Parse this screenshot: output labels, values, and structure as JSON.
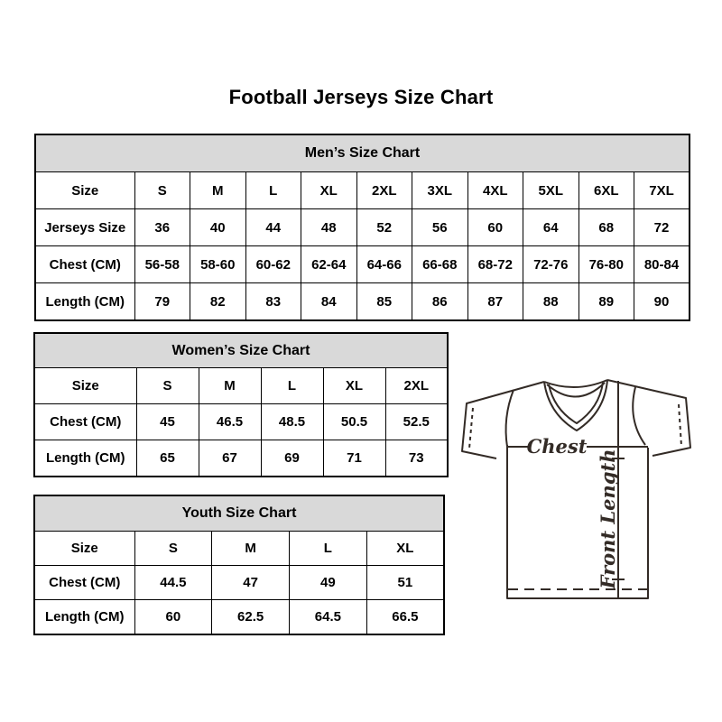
{
  "page": {
    "title": "Football Jerseys Size Chart"
  },
  "colors": {
    "background": "#ffffff",
    "table_header_bg": "#d9d9d9",
    "border": "#000000",
    "diagram_line": "#332b26",
    "text": "#000000"
  },
  "tables": {
    "men": {
      "title": "Men’s Size Chart",
      "rows": [
        [
          "Size",
          "S",
          "M",
          "L",
          "XL",
          "2XL",
          "3XL",
          "4XL",
          "5XL",
          "6XL",
          "7XL"
        ],
        [
          "Jerseys Size",
          "36",
          "40",
          "44",
          "48",
          "52",
          "56",
          "60",
          "64",
          "68",
          "72"
        ],
        [
          "Chest (CM)",
          "56-58",
          "58-60",
          "60-62",
          "62-64",
          "64-66",
          "66-68",
          "68-72",
          "72-76",
          "76-80",
          "80-84"
        ],
        [
          "Length (CM)",
          "79",
          "82",
          "83",
          "84",
          "85",
          "86",
          "87",
          "88",
          "89",
          "90"
        ]
      ]
    },
    "women": {
      "title": "Women’s Size Chart",
      "rows": [
        [
          "Size",
          "S",
          "M",
          "L",
          "XL",
          "2XL"
        ],
        [
          "Chest (CM)",
          "45",
          "46.5",
          "48.5",
          "50.5",
          "52.5"
        ],
        [
          "Length (CM)",
          "65",
          "67",
          "69",
          "71",
          "73"
        ]
      ]
    },
    "youth": {
      "title": "Youth Size Chart",
      "rows": [
        [
          "Size",
          "S",
          "M",
          "L",
          "XL"
        ],
        [
          "Chest (CM)",
          "44.5",
          "47",
          "49",
          "51"
        ],
        [
          "Length (CM)",
          "60",
          "62.5",
          "64.5",
          "66.5"
        ]
      ]
    }
  },
  "diagram": {
    "chest_label": "Chest",
    "front_length_label": "Front Length"
  }
}
